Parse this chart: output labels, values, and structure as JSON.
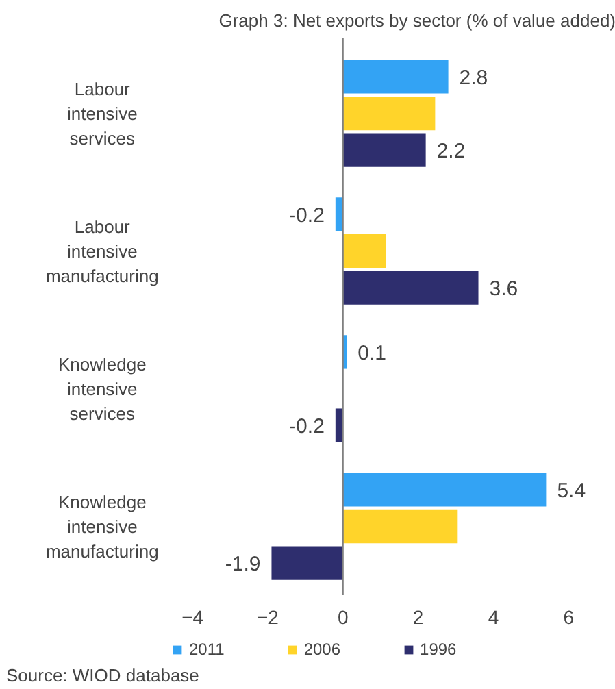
{
  "chart_data": {
    "type": "bar",
    "orientation": "horizontal",
    "title": "Graph 3: Net exports by sector (% of value added)",
    "categories": [
      "Labour intensive services",
      "Labour intensive manufacturing",
      "Knowledge intensive services",
      "Knowledge intensive manufacturing"
    ],
    "series": [
      {
        "name": "2011",
        "color": "#33a3f4",
        "values": [
          2.8,
          -0.2,
          0.1,
          5.4
        ],
        "value_labels": [
          "2.8",
          "-0.2",
          "0.1",
          "5.4"
        ]
      },
      {
        "name": "2006",
        "color": "#ffd42a",
        "values": [
          2.45,
          1.15,
          0,
          3.05
        ],
        "value_labels": [
          null,
          null,
          null,
          null
        ]
      },
      {
        "name": "1996",
        "color": "#2e2e6e",
        "values": [
          2.2,
          3.6,
          -0.2,
          -1.9
        ],
        "value_labels": [
          "2.2",
          "3.6",
          "-0.2",
          "-1.9"
        ]
      }
    ],
    "ref_lines": [
      {
        "axis": "x",
        "value": 0,
        "color": "#808080"
      }
    ],
    "xlim": [
      -4,
      6
    ],
    "xticks": [
      -4,
      -2,
      0,
      2,
      4,
      6
    ],
    "grid": false,
    "legend": "bottom",
    "annotations": [
      "Source: WIOD database"
    ]
  }
}
